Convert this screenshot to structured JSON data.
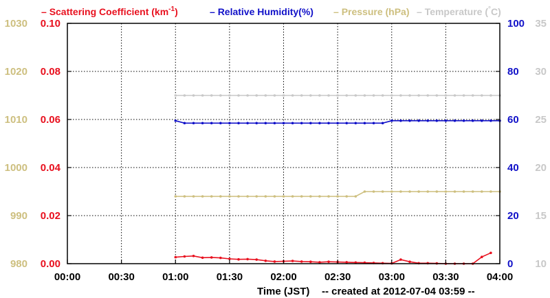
{
  "legend": {
    "items": [
      {
        "dash": "–",
        "label": "Scattering Coefficient (km",
        "sup": "-1",
        "close": ")",
        "color": "#e8101e"
      },
      {
        "dash": "–",
        "label": "Relative Humidity(%)",
        "color": "#1010c8"
      },
      {
        "dash": "–",
        "label": "Pressure (hPa)",
        "color": "#cdbf7f"
      },
      {
        "dash": "–",
        "label": "Temperature (",
        "sup": "°",
        "close": "C)",
        "color": "#c8c8c8"
      }
    ]
  },
  "footer": {
    "xlabel": "Time (JST)",
    "created": "-- created at 2012-07-04 03:59 --"
  },
  "chart_data": {
    "type": "line",
    "x_ticks": [
      "00:00",
      "00:30",
      "01:00",
      "01:30",
      "02:00",
      "02:30",
      "03:00",
      "03:30",
      "04:00"
    ],
    "xlabel": "Time (JST)",
    "xlim": [
      "00:00",
      "04:00"
    ],
    "grid": true,
    "axes": {
      "pressure": {
        "side": "far-left",
        "ylim": [
          980,
          1030
        ],
        "ticks": [
          "980",
          "990",
          "1000",
          "1010",
          "1020",
          "1030"
        ],
        "color": "#cdbf7f"
      },
      "scattering": {
        "side": "left",
        "ylim": [
          0,
          0.1
        ],
        "ticks": [
          "0.00",
          "0.02",
          "0.04",
          "0.06",
          "0.08",
          "0.10"
        ],
        "color": "#e8101e"
      },
      "humidity": {
        "side": "right",
        "ylim": [
          0,
          100
        ],
        "ticks": [
          "0",
          "20",
          "40",
          "60",
          "80",
          "100"
        ],
        "color": "#1010c8"
      },
      "temperature": {
        "side": "far-right",
        "ylim": [
          10,
          35
        ],
        "ticks": [
          "10",
          "15",
          "20",
          "25",
          "30",
          "35"
        ],
        "color": "#c8c8c8"
      }
    },
    "series": [
      {
        "name": "Scattering Coefficient (km-1)",
        "axis": "scattering",
        "color": "#e8101e",
        "x": [
          "01:00",
          "01:05",
          "01:10",
          "01:15",
          "01:20",
          "01:25",
          "01:30",
          "01:35",
          "01:40",
          "01:45",
          "01:50",
          "01:55",
          "02:00",
          "02:05",
          "02:10",
          "02:15",
          "02:20",
          "02:25",
          "02:30",
          "02:35",
          "02:40",
          "02:45",
          "02:50",
          "02:55",
          "03:00",
          "03:05",
          "03:10",
          "03:15",
          "03:20",
          "03:25",
          "03:30",
          "03:35",
          "03:40",
          "03:45",
          "03:50",
          "03:55"
        ],
        "values": [
          0.0027,
          0.003,
          0.0032,
          0.0025,
          0.0026,
          0.0024,
          0.002,
          0.0018,
          0.0019,
          0.0017,
          0.0012,
          0.0009,
          0.001,
          0.0011,
          0.0009,
          0.0008,
          0.0006,
          0.0008,
          0.0007,
          0.0006,
          0.0005,
          0.0004,
          0.0003,
          0.0002,
          0.0001,
          0.0017,
          0.0008,
          0.0002,
          0.0002,
          0.0001,
          0.0,
          0.0,
          0.0,
          0.0,
          0.0028,
          0.0045
        ]
      },
      {
        "name": "Relative Humidity(%)",
        "axis": "humidity",
        "color": "#1010c8",
        "x": [
          "01:00",
          "01:05",
          "01:10",
          "01:15",
          "01:20",
          "01:25",
          "01:30",
          "01:35",
          "01:40",
          "01:45",
          "01:50",
          "01:55",
          "02:00",
          "02:05",
          "02:10",
          "02:15",
          "02:20",
          "02:25",
          "02:30",
          "02:35",
          "02:40",
          "02:45",
          "02:50",
          "02:55",
          "03:00",
          "03:05",
          "03:10",
          "03:15",
          "03:20",
          "03:25",
          "03:30",
          "03:35",
          "03:40",
          "03:45",
          "03:50",
          "03:55",
          "04:00"
        ],
        "values": [
          59.5,
          58.5,
          58.5,
          58.5,
          58.5,
          58.5,
          58.5,
          58.5,
          58.5,
          58.5,
          58.5,
          58.5,
          58.5,
          58.5,
          58.5,
          58.5,
          58.5,
          58.5,
          58.5,
          58.5,
          58.5,
          58.5,
          58.5,
          58.5,
          59.5,
          59.5,
          59.5,
          59.5,
          59.5,
          59.5,
          59.5,
          59.5,
          59.5,
          59.5,
          59.5,
          59.5,
          59.5
        ]
      },
      {
        "name": "Pressure (hPa)",
        "axis": "pressure",
        "color": "#cdbf7f",
        "x": [
          "01:00",
          "01:05",
          "01:10",
          "01:15",
          "01:20",
          "01:25",
          "01:30",
          "01:35",
          "01:40",
          "01:45",
          "01:50",
          "01:55",
          "02:00",
          "02:05",
          "02:10",
          "02:15",
          "02:20",
          "02:25",
          "02:30",
          "02:35",
          "02:40",
          "02:45",
          "02:50",
          "02:55",
          "03:00",
          "03:05",
          "03:10",
          "03:15",
          "03:20",
          "03:25",
          "03:30",
          "03:35",
          "03:40",
          "03:45",
          "03:50",
          "03:55",
          "04:00"
        ],
        "values": [
          994,
          994,
          994,
          994,
          994,
          994,
          994,
          994,
          994,
          994,
          994,
          994,
          994,
          994,
          994,
          994,
          994,
          994,
          994,
          994,
          994,
          995,
          995,
          995,
          995,
          995,
          995,
          995,
          995,
          995,
          995,
          995,
          995,
          995,
          995,
          995,
          995
        ]
      },
      {
        "name": "Temperature (°C)",
        "axis": "temperature",
        "color": "#c8c8c8",
        "x": [
          "01:00",
          "01:05",
          "01:10",
          "01:15",
          "01:20",
          "01:25",
          "01:30",
          "01:35",
          "01:40",
          "01:45",
          "01:50",
          "01:55",
          "02:00",
          "02:05",
          "02:10",
          "02:15",
          "02:20",
          "02:25",
          "02:30",
          "02:35",
          "02:40",
          "02:45",
          "02:50",
          "02:55",
          "03:00",
          "03:05",
          "03:10",
          "03:15",
          "03:20",
          "03:25",
          "03:30",
          "03:35",
          "03:40",
          "03:45",
          "03:50",
          "03:55",
          "04:00"
        ],
        "values": [
          27.5,
          27.5,
          27.5,
          27.5,
          27.5,
          27.5,
          27.5,
          27.5,
          27.5,
          27.5,
          27.5,
          27.5,
          27.5,
          27.5,
          27.5,
          27.5,
          27.5,
          27.5,
          27.5,
          27.5,
          27.5,
          27.5,
          27.5,
          27.5,
          27.5,
          27.5,
          27.5,
          27.5,
          27.5,
          27.5,
          27.5,
          27.5,
          27.5,
          27.5,
          27.5,
          27.5,
          27.5
        ]
      }
    ]
  }
}
